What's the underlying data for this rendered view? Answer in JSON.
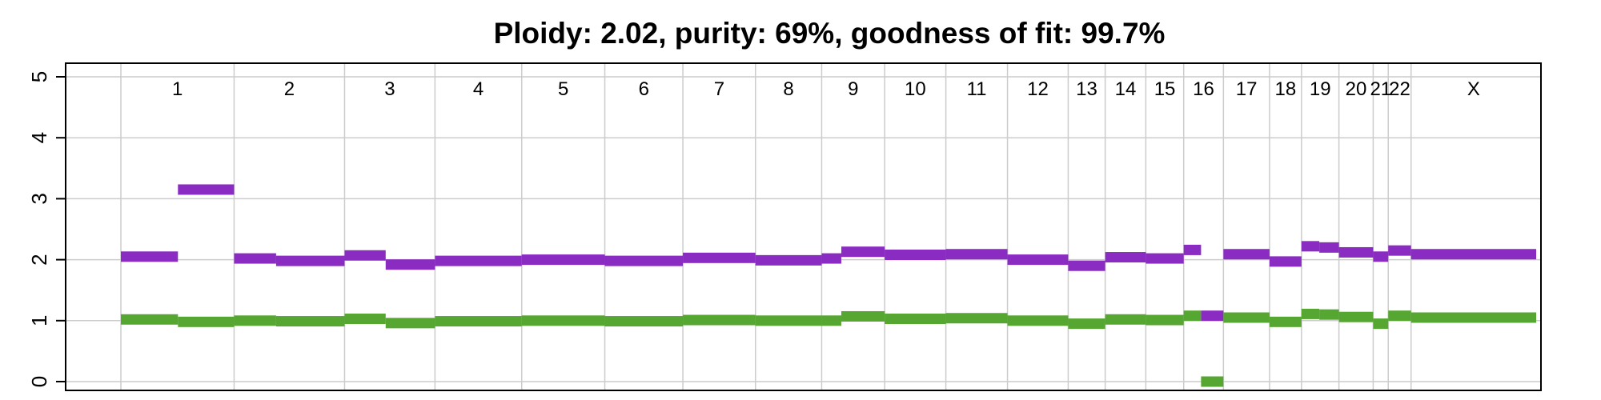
{
  "chart_data": {
    "type": "segment",
    "title": "Ploidy: 2.02, purity: 69%, goodness of fit: 99.7%",
    "xlabel": "",
    "ylabel": "",
    "ylim": [
      0,
      5
    ],
    "y_ticks": [
      0,
      1,
      2,
      3,
      4,
      5
    ],
    "grid": true,
    "genome_extent": [
      0,
      3100
    ],
    "colors": {
      "total_copy_number": "#8a2bc2",
      "minor_copy_number": "#56a632",
      "grid": "#cccccc",
      "frame": "#000000"
    },
    "chromosomes": [
      {
        "name": "1",
        "start": 0,
        "end": 248
      },
      {
        "name": "2",
        "start": 248,
        "end": 490
      },
      {
        "name": "3",
        "start": 490,
        "end": 688
      },
      {
        "name": "4",
        "start": 688,
        "end": 878
      },
      {
        "name": "5",
        "start": 878,
        "end": 1060
      },
      {
        "name": "6",
        "start": 1060,
        "end": 1231
      },
      {
        "name": "7",
        "start": 1231,
        "end": 1390
      },
      {
        "name": "8",
        "start": 1390,
        "end": 1535
      },
      {
        "name": "9",
        "start": 1535,
        "end": 1673
      },
      {
        "name": "10",
        "start": 1673,
        "end": 1807
      },
      {
        "name": "11",
        "start": 1807,
        "end": 1942
      },
      {
        "name": "12",
        "start": 1942,
        "end": 2075
      },
      {
        "name": "13",
        "start": 2075,
        "end": 2156
      },
      {
        "name": "14",
        "start": 2156,
        "end": 2245
      },
      {
        "name": "15",
        "start": 2245,
        "end": 2328
      },
      {
        "name": "16",
        "start": 2328,
        "end": 2415
      },
      {
        "name": "17",
        "start": 2415,
        "end": 2516
      },
      {
        "name": "18",
        "start": 2516,
        "end": 2586
      },
      {
        "name": "19",
        "start": 2586,
        "end": 2668
      },
      {
        "name": "20",
        "start": 2668,
        "end": 2743
      },
      {
        "name": "21",
        "start": 2743,
        "end": 2776
      },
      {
        "name": "22",
        "start": 2776,
        "end": 2826
      },
      {
        "name": "X",
        "start": 2826,
        "end": 3100
      }
    ],
    "series": [
      {
        "key": "total",
        "segments": [
          {
            "start": 0,
            "end": 125,
            "value": 2.05
          },
          {
            "start": 125,
            "end": 248,
            "value": 3.15
          },
          {
            "start": 248,
            "end": 340,
            "value": 2.02
          },
          {
            "start": 340,
            "end": 490,
            "value": 1.98
          },
          {
            "start": 490,
            "end": 580,
            "value": 2.07
          },
          {
            "start": 580,
            "end": 688,
            "value": 1.92
          },
          {
            "start": 688,
            "end": 878,
            "value": 1.98
          },
          {
            "start": 878,
            "end": 1060,
            "value": 2.0
          },
          {
            "start": 1060,
            "end": 1231,
            "value": 1.98
          },
          {
            "start": 1231,
            "end": 1390,
            "value": 2.03
          },
          {
            "start": 1390,
            "end": 1535,
            "value": 1.99
          },
          {
            "start": 1535,
            "end": 1578,
            "value": 2.02
          },
          {
            "start": 1578,
            "end": 1673,
            "value": 2.13
          },
          {
            "start": 1673,
            "end": 1807,
            "value": 2.08
          },
          {
            "start": 1807,
            "end": 1942,
            "value": 2.09
          },
          {
            "start": 1942,
            "end": 2075,
            "value": 2.0
          },
          {
            "start": 2075,
            "end": 2156,
            "value": 1.9
          },
          {
            "start": 2156,
            "end": 2245,
            "value": 2.04
          },
          {
            "start": 2245,
            "end": 2328,
            "value": 2.02
          },
          {
            "start": 2328,
            "end": 2366,
            "value": 2.16
          },
          {
            "start": 2366,
            "end": 2415,
            "value": 1.08
          },
          {
            "start": 2415,
            "end": 2516,
            "value": 2.09
          },
          {
            "start": 2516,
            "end": 2586,
            "value": 1.97
          },
          {
            "start": 2586,
            "end": 2625,
            "value": 2.22
          },
          {
            "start": 2625,
            "end": 2668,
            "value": 2.2
          },
          {
            "start": 2668,
            "end": 2743,
            "value": 2.12
          },
          {
            "start": 2743,
            "end": 2776,
            "value": 2.05
          },
          {
            "start": 2776,
            "end": 2826,
            "value": 2.15
          },
          {
            "start": 2826,
            "end": 3100,
            "value": 2.09
          }
        ]
      },
      {
        "key": "minor",
        "segments": [
          {
            "start": 0,
            "end": 125,
            "value": 1.02
          },
          {
            "start": 125,
            "end": 248,
            "value": 0.98
          },
          {
            "start": 248,
            "end": 340,
            "value": 1.0
          },
          {
            "start": 340,
            "end": 490,
            "value": 0.99
          },
          {
            "start": 490,
            "end": 580,
            "value": 1.03
          },
          {
            "start": 580,
            "end": 688,
            "value": 0.96
          },
          {
            "start": 688,
            "end": 878,
            "value": 0.99
          },
          {
            "start": 878,
            "end": 1060,
            "value": 1.0
          },
          {
            "start": 1060,
            "end": 1231,
            "value": 0.99
          },
          {
            "start": 1231,
            "end": 1390,
            "value": 1.01
          },
          {
            "start": 1390,
            "end": 1535,
            "value": 1.0
          },
          {
            "start": 1535,
            "end": 1578,
            "value": 1.0
          },
          {
            "start": 1578,
            "end": 1673,
            "value": 1.07
          },
          {
            "start": 1673,
            "end": 1807,
            "value": 1.03
          },
          {
            "start": 1807,
            "end": 1942,
            "value": 1.04
          },
          {
            "start": 1942,
            "end": 2075,
            "value": 1.0
          },
          {
            "start": 2075,
            "end": 2156,
            "value": 0.95
          },
          {
            "start": 2156,
            "end": 2245,
            "value": 1.02
          },
          {
            "start": 2245,
            "end": 2328,
            "value": 1.01
          },
          {
            "start": 2328,
            "end": 2366,
            "value": 1.08
          },
          {
            "start": 2366,
            "end": 2415,
            "value": 0.0
          },
          {
            "start": 2415,
            "end": 2516,
            "value": 1.05
          },
          {
            "start": 2516,
            "end": 2586,
            "value": 0.98
          },
          {
            "start": 2586,
            "end": 2625,
            "value": 1.11
          },
          {
            "start": 2625,
            "end": 2668,
            "value": 1.1
          },
          {
            "start": 2668,
            "end": 2743,
            "value": 1.06
          },
          {
            "start": 2743,
            "end": 2776,
            "value": 0.95
          },
          {
            "start": 2776,
            "end": 2826,
            "value": 1.08
          },
          {
            "start": 2826,
            "end": 3100,
            "value": 1.05
          }
        ]
      }
    ]
  }
}
